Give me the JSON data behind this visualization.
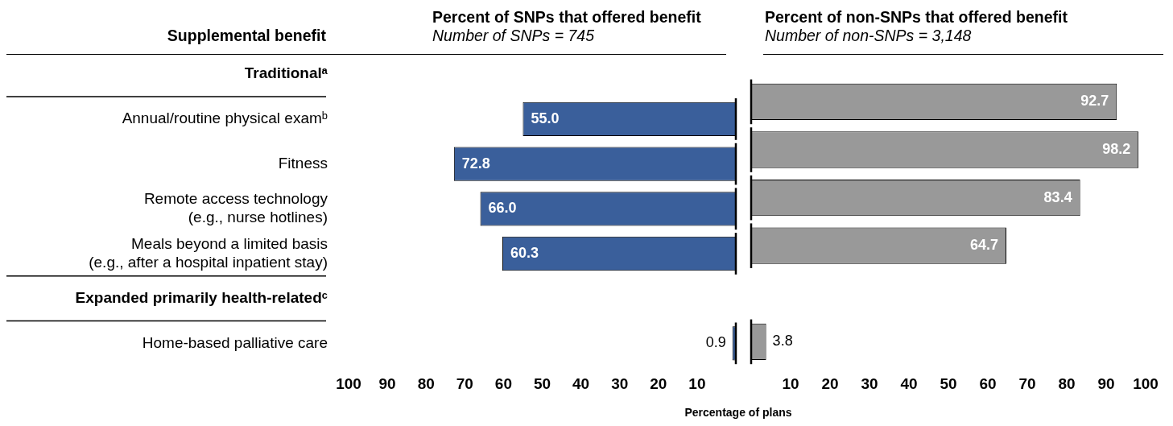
{
  "chart_data": [
    {
      "type": "bar",
      "orientation": "horizontal",
      "title": "Percent of SNPs that offered benefit",
      "subtitle": "Number of SNPs = 745",
      "ylabel": "Supplemental benefit",
      "xlabel": "Percentage of plans",
      "categories": [
        "Traditionalᵃ",
        "Annual/routine physical examᵇ",
        "Fitness",
        "Remote access technology (e.g., nurse hotlines)",
        "Meals beyond a limited basis (e.g., after a hospital inpatient stay)",
        "Expanded primarily health-relatedᶜ",
        "Home-based palliative care"
      ],
      "values": [
        null,
        55.0,
        72.8,
        66.0,
        60.3,
        null,
        0.9
      ],
      "value_labels": [
        null,
        "55.0",
        "72.8",
        "66.0",
        "60.3",
        null,
        "0.9"
      ],
      "color": "#3a5f9b",
      "xlim": [
        100,
        0
      ],
      "xticks": [
        100,
        90,
        80,
        70,
        60,
        50,
        40,
        30,
        20,
        10
      ],
      "grid": false
    },
    {
      "type": "bar",
      "orientation": "horizontal",
      "title": "Percent of non-SNPs that offered benefit",
      "subtitle": "Number of non-SNPs = 3,148",
      "categories": [
        null,
        null,
        null,
        null,
        null,
        null,
        null
      ],
      "values": [
        null,
        92.7,
        98.2,
        83.4,
        64.7,
        null,
        3.8
      ],
      "value_labels": [
        null,
        "92.7",
        "98.2",
        "83.4",
        "64.7",
        null,
        "3.8"
      ],
      "color": "#999999",
      "xlim": [
        0,
        100
      ],
      "xticks": [
        10,
        20,
        30,
        40,
        50,
        60,
        70,
        80,
        90,
        100
      ],
      "grid": false,
      "tick_labels": "x"
    }
  ]
}
